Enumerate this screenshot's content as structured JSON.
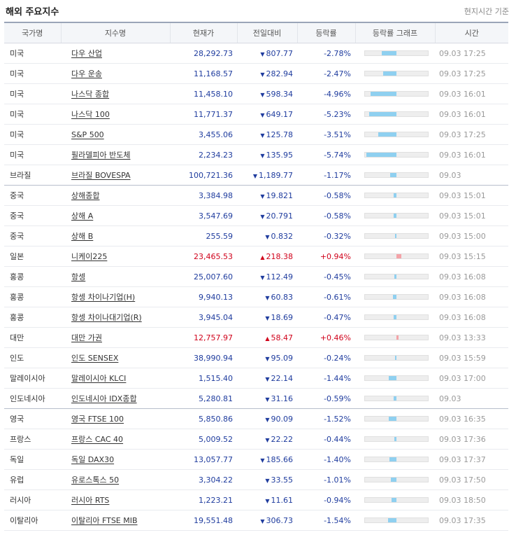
{
  "header": {
    "title": "해외 주요지수",
    "note": "현지시간 기준"
  },
  "columns": [
    "국가명",
    "지수명",
    "현재가",
    "전일대비",
    "등락률",
    "등락률 그래프",
    "시간"
  ],
  "colors": {
    "down": "#1f3c9e",
    "up": "#d0021b",
    "bar_down": "#8fd0f0",
    "bar_up": "#f4a3a8"
  },
  "rows": [
    {
      "country": "미국",
      "index": "다우 산업",
      "price": "28,292.73",
      "dir": "down",
      "change": "807.77",
      "rate": "-2.78%",
      "rate_value": -2.78,
      "time": "09.03 17:25"
    },
    {
      "country": "미국",
      "index": "다우 운송",
      "price": "11,168.57",
      "dir": "down",
      "change": "282.94",
      "rate": "-2.47%",
      "rate_value": -2.47,
      "time": "09.03 17:25"
    },
    {
      "country": "미국",
      "index": "나스닥 종합",
      "price": "11,458.10",
      "dir": "down",
      "change": "598.34",
      "rate": "-4.96%",
      "rate_value": -4.96,
      "time": "09.03 16:01"
    },
    {
      "country": "미국",
      "index": "나스닥 100",
      "price": "11,771.37",
      "dir": "down",
      "change": "649.17",
      "rate": "-5.23%",
      "rate_value": -5.23,
      "time": "09.03 16:01"
    },
    {
      "country": "미국",
      "index": "S&P 500",
      "price": "3,455.06",
      "dir": "down",
      "change": "125.78",
      "rate": "-3.51%",
      "rate_value": -3.51,
      "time": "09.03 17:25"
    },
    {
      "country": "미국",
      "index": "필라델피아 반도체",
      "price": "2,234.23",
      "dir": "down",
      "change": "135.95",
      "rate": "-5.74%",
      "rate_value": -5.74,
      "time": "09.03 16:01"
    },
    {
      "country": "브라질",
      "index": "브라질 BOVESPA",
      "price": "100,721.36",
      "dir": "down",
      "change": "1,189.77",
      "rate": "-1.17%",
      "rate_value": -1.17,
      "time": "09.03",
      "group_end": true
    },
    {
      "country": "중국",
      "index": "상해종합",
      "price": "3,384.98",
      "dir": "down",
      "change": "19.821",
      "rate": "-0.58%",
      "rate_value": -0.58,
      "time": "09.03 15:01"
    },
    {
      "country": "중국",
      "index": "상해 A",
      "price": "3,547.69",
      "dir": "down",
      "change": "20.791",
      "rate": "-0.58%",
      "rate_value": -0.58,
      "time": "09.03 15:01"
    },
    {
      "country": "중국",
      "index": "상해 B",
      "price": "255.59",
      "dir": "down",
      "change": "0.832",
      "rate": "-0.32%",
      "rate_value": -0.32,
      "time": "09.03 15:00"
    },
    {
      "country": "일본",
      "index": "니케이225",
      "price": "23,465.53",
      "dir": "up",
      "change": "218.38",
      "rate": "+0.94%",
      "rate_value": 0.94,
      "time": "09.03 15:15"
    },
    {
      "country": "홍콩",
      "index": "항셍",
      "price": "25,007.60",
      "dir": "down",
      "change": "112.49",
      "rate": "-0.45%",
      "rate_value": -0.45,
      "time": "09.03 16:08"
    },
    {
      "country": "홍콩",
      "index": "항셍 차이나기업(H)",
      "price": "9,940.13",
      "dir": "down",
      "change": "60.83",
      "rate": "-0.61%",
      "rate_value": -0.61,
      "time": "09.03 16:08"
    },
    {
      "country": "홍콩",
      "index": "항셍 차이나대기업(R)",
      "price": "3,945.04",
      "dir": "down",
      "change": "18.69",
      "rate": "-0.47%",
      "rate_value": -0.47,
      "time": "09.03 16:08"
    },
    {
      "country": "대만",
      "index": "대만 가권",
      "price": "12,757.97",
      "dir": "up",
      "change": "58.47",
      "rate": "+0.46%",
      "rate_value": 0.46,
      "time": "09.03 13:33"
    },
    {
      "country": "인도",
      "index": "인도 SENSEX",
      "price": "38,990.94",
      "dir": "down",
      "change": "95.09",
      "rate": "-0.24%",
      "rate_value": -0.24,
      "time": "09.03 15:59"
    },
    {
      "country": "말레이시아",
      "index": "말레이시아 KLCI",
      "price": "1,515.40",
      "dir": "down",
      "change": "22.14",
      "rate": "-1.44%",
      "rate_value": -1.44,
      "time": "09.03 17:00"
    },
    {
      "country": "인도네시아",
      "index": "인도네시아 IDX종합",
      "price": "5,280.81",
      "dir": "down",
      "change": "31.16",
      "rate": "-0.59%",
      "rate_value": -0.59,
      "time": "09.03",
      "group_end": true
    },
    {
      "country": "영국",
      "index": "영국 FTSE 100",
      "price": "5,850.86",
      "dir": "down",
      "change": "90.09",
      "rate": "-1.52%",
      "rate_value": -1.52,
      "time": "09.03 16:35"
    },
    {
      "country": "프랑스",
      "index": "프랑스 CAC 40",
      "price": "5,009.52",
      "dir": "down",
      "change": "22.22",
      "rate": "-0.44%",
      "rate_value": -0.44,
      "time": "09.03 17:36"
    },
    {
      "country": "독일",
      "index": "독일 DAX30",
      "price": "13,057.77",
      "dir": "down",
      "change": "185.66",
      "rate": "-1.40%",
      "rate_value": -1.4,
      "time": "09.03 17:37"
    },
    {
      "country": "유럽",
      "index": "유로스톡스 50",
      "price": "3,304.22",
      "dir": "down",
      "change": "33.55",
      "rate": "-1.01%",
      "rate_value": -1.01,
      "time": "09.03 17:50"
    },
    {
      "country": "러시아",
      "index": "러시아 RTS",
      "price": "1,223.21",
      "dir": "down",
      "change": "11.61",
      "rate": "-0.94%",
      "rate_value": -0.94,
      "time": "09.03 18:50"
    },
    {
      "country": "이탈리아",
      "index": "이탈리아 FTSE MIB",
      "price": "19,551.48",
      "dir": "down",
      "change": "306.73",
      "rate": "-1.54%",
      "rate_value": -1.54,
      "time": "09.03 17:35"
    }
  ]
}
